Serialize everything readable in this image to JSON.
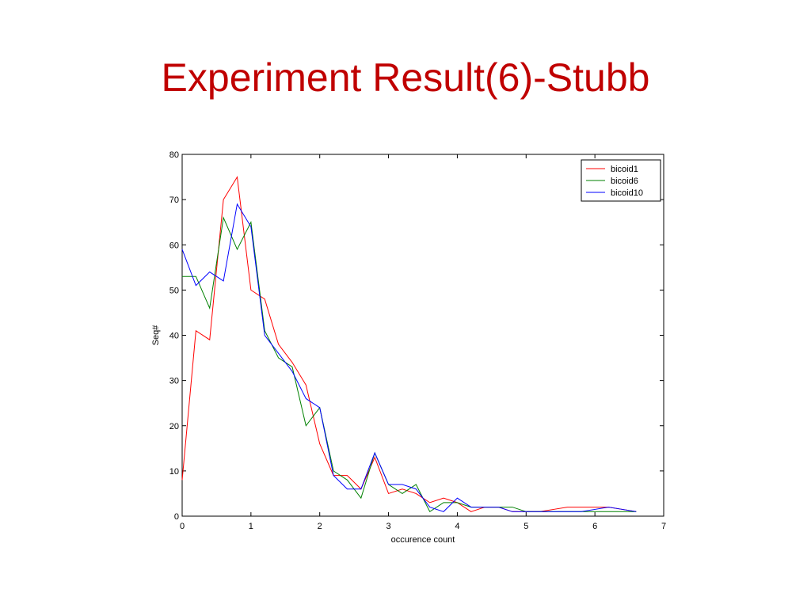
{
  "slide": {
    "title": "Experiment Result(6)-Stubb",
    "title_color": "#c00000"
  },
  "chart_data": {
    "type": "line",
    "title": "",
    "xlabel": "occurence count",
    "ylabel": "Seq#",
    "xlim": [
      0,
      7
    ],
    "ylim": [
      0,
      80
    ],
    "xticks": [
      0,
      1,
      2,
      3,
      4,
      5,
      6,
      7
    ],
    "yticks": [
      0,
      10,
      20,
      30,
      40,
      50,
      60,
      70,
      80
    ],
    "grid": false,
    "legend_position": "top-right",
    "x": [
      0,
      0.2,
      0.4,
      0.6,
      0.8,
      1.0,
      1.2,
      1.4,
      1.6,
      1.8,
      2.0,
      2.2,
      2.4,
      2.6,
      2.8,
      3.0,
      3.2,
      3.4,
      3.6,
      3.8,
      4.0,
      4.2,
      4.4,
      4.6,
      4.8,
      5.0,
      5.2,
      5.4,
      5.6,
      5.8,
      6.0,
      6.2,
      6.4,
      6.6
    ],
    "series": [
      {
        "name": "bicoid1",
        "color": "#ff0000",
        "values": [
          8,
          41,
          39,
          70,
          75,
          50,
          48,
          38,
          34,
          29,
          16,
          9,
          9,
          6,
          13,
          5,
          6,
          5,
          3,
          4,
          3,
          1,
          2,
          2,
          1,
          1,
          1,
          1.5,
          2,
          2,
          2,
          2,
          1.5,
          1
        ]
      },
      {
        "name": "bicoid6",
        "color": "#008000",
        "values": [
          53,
          53,
          46,
          66,
          59,
          65,
          41,
          35,
          33,
          20,
          24,
          10,
          8,
          4,
          14,
          7,
          5,
          7,
          1,
          3,
          3,
          2,
          2,
          2,
          2,
          1,
          1,
          1,
          1,
          1,
          1,
          1,
          1,
          1
        ]
      },
      {
        "name": "bicoid10",
        "color": "#0000ff",
        "values": [
          59,
          51,
          54,
          52,
          69,
          64,
          40,
          36,
          32,
          26,
          24,
          9,
          6,
          6,
          14,
          7,
          7,
          6,
          2,
          1,
          4,
          2,
          2,
          2,
          1,
          1,
          1,
          1,
          1,
          1,
          1.5,
          2,
          1.5,
          1
        ]
      }
    ]
  }
}
